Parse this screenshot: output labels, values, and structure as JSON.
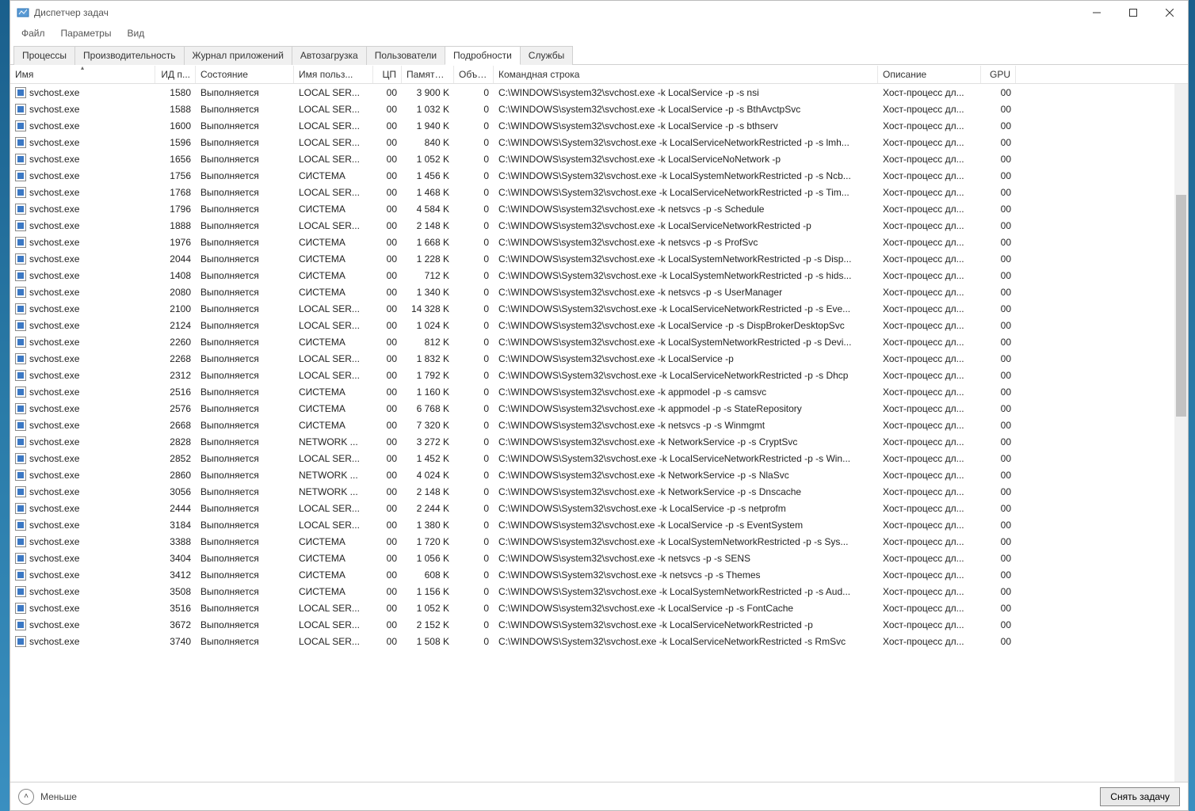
{
  "window": {
    "title": "Диспетчер задач"
  },
  "menubar": {
    "file": "Файл",
    "options": "Параметры",
    "view": "Вид"
  },
  "tabs": {
    "processes": "Процессы",
    "performance": "Производительность",
    "app_history": "Журнал приложений",
    "startup": "Автозагрузка",
    "users": "Пользователи",
    "details": "Подробности",
    "services": "Службы",
    "active": "details"
  },
  "columns": {
    "name": "Имя",
    "pid": "ИД п...",
    "state": "Состояние",
    "user": "Имя польз...",
    "cpu": "ЦП",
    "mem": "Память ...",
    "uac": "Объе...",
    "cmd": "Командная строка",
    "desc": "Описание",
    "gpu": "GPU"
  },
  "common": {
    "state_running": "Выполняется",
    "user_localser": "LOCAL SER...",
    "user_system": "СИСТЕМА",
    "user_network": "NETWORK ...",
    "desc_host": "Хост-процесс дл...",
    "proc_name": "svchost.exe"
  },
  "rows": [
    {
      "pid": "1580",
      "user": "LOCAL SER...",
      "cpu": "00",
      "mem": "3 900 K",
      "uac": "0",
      "cmd": "C:\\WINDOWS\\system32\\svchost.exe -k LocalService -p -s nsi",
      "gpu": "00"
    },
    {
      "pid": "1588",
      "user": "LOCAL SER...",
      "cpu": "00",
      "mem": "1 032 K",
      "uac": "0",
      "cmd": "C:\\WINDOWS\\system32\\svchost.exe -k LocalService -p -s BthAvctpSvc",
      "gpu": "00"
    },
    {
      "pid": "1600",
      "user": "LOCAL SER...",
      "cpu": "00",
      "mem": "1 940 K",
      "uac": "0",
      "cmd": "C:\\WINDOWS\\system32\\svchost.exe -k LocalService -p -s bthserv",
      "gpu": "00"
    },
    {
      "pid": "1596",
      "user": "LOCAL SER...",
      "cpu": "00",
      "mem": "840 K",
      "uac": "0",
      "cmd": "C:\\WINDOWS\\System32\\svchost.exe -k LocalServiceNetworkRestricted -p -s lmh...",
      "gpu": "00"
    },
    {
      "pid": "1656",
      "user": "LOCAL SER...",
      "cpu": "00",
      "mem": "1 052 K",
      "uac": "0",
      "cmd": "C:\\WINDOWS\\system32\\svchost.exe -k LocalServiceNoNetwork -p",
      "gpu": "00"
    },
    {
      "pid": "1756",
      "user": "СИСТЕМА",
      "cpu": "00",
      "mem": "1 456 K",
      "uac": "0",
      "cmd": "C:\\WINDOWS\\System32\\svchost.exe -k LocalSystemNetworkRestricted -p -s Ncb...",
      "gpu": "00"
    },
    {
      "pid": "1768",
      "user": "LOCAL SER...",
      "cpu": "00",
      "mem": "1 468 K",
      "uac": "0",
      "cmd": "C:\\WINDOWS\\System32\\svchost.exe -k LocalServiceNetworkRestricted -p -s Tim...",
      "gpu": "00"
    },
    {
      "pid": "1796",
      "user": "СИСТЕМА",
      "cpu": "00",
      "mem": "4 584 K",
      "uac": "0",
      "cmd": "C:\\WINDOWS\\system32\\svchost.exe -k netsvcs -p -s Schedule",
      "gpu": "00"
    },
    {
      "pid": "1888",
      "user": "LOCAL SER...",
      "cpu": "00",
      "mem": "2 148 K",
      "uac": "0",
      "cmd": "C:\\WINDOWS\\system32\\svchost.exe -k LocalServiceNetworkRestricted -p",
      "gpu": "00"
    },
    {
      "pid": "1976",
      "user": "СИСТЕМА",
      "cpu": "00",
      "mem": "1 668 K",
      "uac": "0",
      "cmd": "C:\\WINDOWS\\system32\\svchost.exe -k netsvcs -p -s ProfSvc",
      "gpu": "00"
    },
    {
      "pid": "2044",
      "user": "СИСТЕМА",
      "cpu": "00",
      "mem": "1 228 K",
      "uac": "0",
      "cmd": "C:\\WINDOWS\\system32\\svchost.exe -k LocalSystemNetworkRestricted -p -s Disp...",
      "gpu": "00"
    },
    {
      "pid": "1408",
      "user": "СИСТЕМА",
      "cpu": "00",
      "mem": "712 K",
      "uac": "0",
      "cmd": "C:\\WINDOWS\\System32\\svchost.exe -k LocalSystemNetworkRestricted -p -s hids...",
      "gpu": "00"
    },
    {
      "pid": "2080",
      "user": "СИСТЕМА",
      "cpu": "00",
      "mem": "1 340 K",
      "uac": "0",
      "cmd": "C:\\WINDOWS\\system32\\svchost.exe -k netsvcs -p -s UserManager",
      "gpu": "00"
    },
    {
      "pid": "2100",
      "user": "LOCAL SER...",
      "cpu": "00",
      "mem": "14 328 K",
      "uac": "0",
      "cmd": "C:\\WINDOWS\\System32\\svchost.exe -k LocalServiceNetworkRestricted -p -s Eve...",
      "gpu": "00"
    },
    {
      "pid": "2124",
      "user": "LOCAL SER...",
      "cpu": "00",
      "mem": "1 024 K",
      "uac": "0",
      "cmd": "C:\\WINDOWS\\system32\\svchost.exe -k LocalService -p -s DispBrokerDesktopSvc",
      "gpu": "00"
    },
    {
      "pid": "2260",
      "user": "СИСТЕМА",
      "cpu": "00",
      "mem": "812 K",
      "uac": "0",
      "cmd": "C:\\WINDOWS\\system32\\svchost.exe -k LocalSystemNetworkRestricted -p -s Devi...",
      "gpu": "00"
    },
    {
      "pid": "2268",
      "user": "LOCAL SER...",
      "cpu": "00",
      "mem": "1 832 K",
      "uac": "0",
      "cmd": "C:\\WINDOWS\\system32\\svchost.exe -k LocalService -p",
      "gpu": "00"
    },
    {
      "pid": "2312",
      "user": "LOCAL SER...",
      "cpu": "00",
      "mem": "1 792 K",
      "uac": "0",
      "cmd": "C:\\WINDOWS\\System32\\svchost.exe -k LocalServiceNetworkRestricted -p -s Dhcp",
      "gpu": "00"
    },
    {
      "pid": "2516",
      "user": "СИСТЕМА",
      "cpu": "00",
      "mem": "1 160 K",
      "uac": "0",
      "cmd": "C:\\WINDOWS\\system32\\svchost.exe -k appmodel -p -s camsvc",
      "gpu": "00"
    },
    {
      "pid": "2576",
      "user": "СИСТЕМА",
      "cpu": "00",
      "mem": "6 768 K",
      "uac": "0",
      "cmd": "C:\\WINDOWS\\system32\\svchost.exe -k appmodel -p -s StateRepository",
      "gpu": "00"
    },
    {
      "pid": "2668",
      "user": "СИСТЕМА",
      "cpu": "00",
      "mem": "7 320 K",
      "uac": "0",
      "cmd": "C:\\WINDOWS\\system32\\svchost.exe -k netsvcs -p -s Winmgmt",
      "gpu": "00"
    },
    {
      "pid": "2828",
      "user": "NETWORK ...",
      "cpu": "00",
      "mem": "3 272 K",
      "uac": "0",
      "cmd": "C:\\WINDOWS\\system32\\svchost.exe -k NetworkService -p -s CryptSvc",
      "gpu": "00"
    },
    {
      "pid": "2852",
      "user": "LOCAL SER...",
      "cpu": "00",
      "mem": "1 452 K",
      "uac": "0",
      "cmd": "C:\\WINDOWS\\System32\\svchost.exe -k LocalServiceNetworkRestricted -p -s Win...",
      "gpu": "00"
    },
    {
      "pid": "2860",
      "user": "NETWORK ...",
      "cpu": "00",
      "mem": "4 024 K",
      "uac": "0",
      "cmd": "C:\\WINDOWS\\system32\\svchost.exe -k NetworkService -p -s NlaSvc",
      "gpu": "00"
    },
    {
      "pid": "3056",
      "user": "NETWORK ...",
      "cpu": "00",
      "mem": "2 148 K",
      "uac": "0",
      "cmd": "C:\\WINDOWS\\system32\\svchost.exe -k NetworkService -p -s Dnscache",
      "gpu": "00"
    },
    {
      "pid": "2444",
      "user": "LOCAL SER...",
      "cpu": "00",
      "mem": "2 244 K",
      "uac": "0",
      "cmd": "C:\\WINDOWS\\System32\\svchost.exe -k LocalService -p -s netprofm",
      "gpu": "00"
    },
    {
      "pid": "3184",
      "user": "LOCAL SER...",
      "cpu": "00",
      "mem": "1 380 K",
      "uac": "0",
      "cmd": "C:\\WINDOWS\\system32\\svchost.exe -k LocalService -p -s EventSystem",
      "gpu": "00"
    },
    {
      "pid": "3388",
      "user": "СИСТЕМА",
      "cpu": "00",
      "mem": "1 720 K",
      "uac": "0",
      "cmd": "C:\\WINDOWS\\system32\\svchost.exe -k LocalSystemNetworkRestricted -p -s Sys...",
      "gpu": "00"
    },
    {
      "pid": "3404",
      "user": "СИСТЕМА",
      "cpu": "00",
      "mem": "1 056 K",
      "uac": "0",
      "cmd": "C:\\WINDOWS\\system32\\svchost.exe -k netsvcs -p -s SENS",
      "gpu": "00"
    },
    {
      "pid": "3412",
      "user": "СИСТЕМА",
      "cpu": "00",
      "mem": "608 K",
      "uac": "0",
      "cmd": "C:\\WINDOWS\\System32\\svchost.exe -k netsvcs -p -s Themes",
      "gpu": "00"
    },
    {
      "pid": "3508",
      "user": "СИСТЕМА",
      "cpu": "00",
      "mem": "1 156 K",
      "uac": "0",
      "cmd": "C:\\WINDOWS\\System32\\svchost.exe -k LocalSystemNetworkRestricted -p -s Aud...",
      "gpu": "00"
    },
    {
      "pid": "3516",
      "user": "LOCAL SER...",
      "cpu": "00",
      "mem": "1 052 K",
      "uac": "0",
      "cmd": "C:\\WINDOWS\\system32\\svchost.exe -k LocalService -p -s FontCache",
      "gpu": "00"
    },
    {
      "pid": "3672",
      "user": "LOCAL SER...",
      "cpu": "00",
      "mem": "2 152 K",
      "uac": "0",
      "cmd": "C:\\WINDOWS\\System32\\svchost.exe -k LocalServiceNetworkRestricted -p",
      "gpu": "00"
    },
    {
      "pid": "3740",
      "user": "LOCAL SER...",
      "cpu": "00",
      "mem": "1 508 K",
      "uac": "0",
      "cmd": "C:\\WINDOWS\\System32\\svchost.exe -k LocalServiceNetworkRestricted -s RmSvc",
      "gpu": "00"
    }
  ],
  "footer": {
    "fewer": "Меньше",
    "end_task": "Снять задачу"
  }
}
